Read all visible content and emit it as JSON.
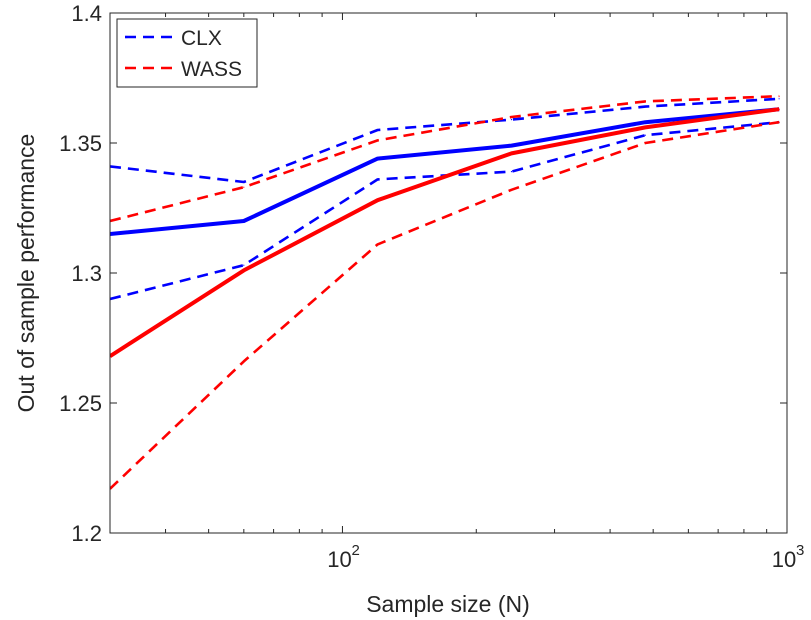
{
  "chart_data": {
    "type": "line",
    "xscale": "log",
    "xlabel": "Sample size (N)",
    "ylabel": "Out of sample performance",
    "xlim": [
      30,
      1000
    ],
    "ylim": [
      1.2,
      1.4
    ],
    "xticks": [
      {
        "value": 100,
        "base": "10",
        "exp": "2"
      },
      {
        "value": 1000,
        "base": "10",
        "exp": "3"
      }
    ],
    "yticks": [
      {
        "value": 1.2,
        "label": "1.2"
      },
      {
        "value": 1.25,
        "label": "1.25"
      },
      {
        "value": 1.3,
        "label": "1.3"
      },
      {
        "value": 1.35,
        "label": "1.35"
      },
      {
        "value": 1.4,
        "label": "1.4"
      }
    ],
    "grid": false,
    "legend_position": "top-left",
    "x": [
      30,
      60,
      120,
      240,
      480,
      960
    ],
    "series": [
      {
        "name": "CLX",
        "legend": true,
        "color": "#0000ff",
        "style": "dashed",
        "values": [
          1.341,
          1.335,
          1.355,
          1.359,
          1.364,
          1.367
        ]
      },
      {
        "name": "WASS",
        "legend": true,
        "color": "#ff0000",
        "style": "dashed",
        "values": [
          1.32,
          1.333,
          1.351,
          1.36,
          1.366,
          1.368
        ]
      },
      {
        "legend": false,
        "color": "#0000ff",
        "style": "solid",
        "values": [
          1.315,
          1.32,
          1.344,
          1.349,
          1.358,
          1.363
        ]
      },
      {
        "legend": false,
        "color": "#0000ff",
        "style": "dashed",
        "values": [
          1.29,
          1.303,
          1.336,
          1.339,
          1.353,
          1.358
        ]
      },
      {
        "legend": false,
        "color": "#ff0000",
        "style": "solid",
        "values": [
          1.268,
          1.301,
          1.328,
          1.346,
          1.356,
          1.363
        ]
      },
      {
        "legend": false,
        "color": "#ff0000",
        "style": "dashed",
        "values": [
          1.217,
          1.266,
          1.311,
          1.332,
          1.35,
          1.358
        ]
      }
    ]
  }
}
